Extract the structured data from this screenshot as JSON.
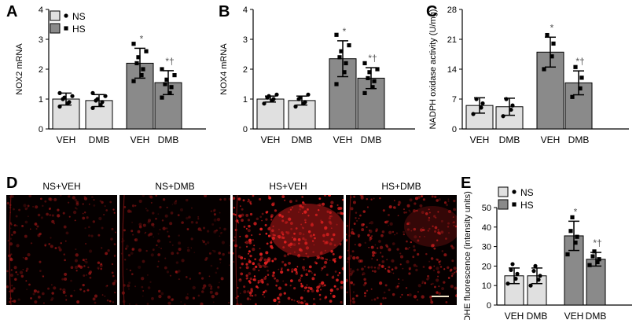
{
  "panels": {
    "A": "A",
    "B": "B",
    "C": "C",
    "D": "D",
    "E": "E"
  },
  "legend": {
    "ns": "NS",
    "hs": "HS",
    "ns_color": "#e0e0e0",
    "hs_color": "#8a8a8a"
  },
  "images": {
    "titles": [
      "NS+VEH",
      "NS+DMB",
      "HS+VEH",
      "HS+DMB"
    ],
    "stain_color": "#e02020"
  },
  "chart_data": [
    {
      "id": "A",
      "type": "bar",
      "ylabel": "NOX2 mRNA",
      "xlabel": "",
      "categories": [
        "VEH",
        "DMB",
        "VEH",
        "DMB"
      ],
      "groups": [
        "NS",
        "NS",
        "HS",
        "HS"
      ],
      "values": [
        1.0,
        0.95,
        2.2,
        1.55
      ],
      "errors": [
        0.2,
        0.2,
        0.5,
        0.4
      ],
      "points": [
        [
          0.75,
          0.85,
          0.9,
          1.0,
          1.05,
          1.1,
          1.2
        ],
        [
          0.7,
          0.8,
          0.9,
          0.95,
          1.0,
          1.1,
          1.2
        ],
        [
          1.6,
          1.8,
          2.0,
          2.2,
          2.4,
          2.6,
          2.85
        ],
        [
          1.05,
          1.2,
          1.4,
          1.5,
          1.65,
          1.8,
          2.0
        ]
      ],
      "annotations": [
        "",
        "",
        "*",
        "*†"
      ],
      "ylim": [
        0,
        4
      ],
      "yticks": [
        "0",
        "1",
        "2",
        "3",
        "4"
      ]
    },
    {
      "id": "B",
      "type": "bar",
      "ylabel": "NOX4 mRNA",
      "xlabel": "",
      "categories": [
        "VEH",
        "DMB",
        "VEH",
        "DMB"
      ],
      "groups": [
        "NS",
        "NS",
        "HS",
        "HS"
      ],
      "values": [
        1.0,
        0.95,
        2.35,
        1.7
      ],
      "errors": [
        0.1,
        0.15,
        0.6,
        0.35
      ],
      "points": [
        [
          0.85,
          0.95,
          1.0,
          1.05,
          1.1,
          1.15
        ],
        [
          0.75,
          0.85,
          0.9,
          1.0,
          1.05,
          1.15
        ],
        [
          1.5,
          1.9,
          2.2,
          2.4,
          2.6,
          2.8,
          3.15
        ],
        [
          1.2,
          1.4,
          1.6,
          1.7,
          1.9,
          2.0,
          2.2
        ]
      ],
      "annotations": [
        "",
        "",
        "*",
        "*†"
      ],
      "ylim": [
        0,
        4
      ],
      "yticks": [
        "0",
        "1",
        "2",
        "3",
        "4"
      ]
    },
    {
      "id": "C",
      "type": "bar",
      "ylabel": "NADPH oxidase activity (U/mg)",
      "xlabel": "",
      "categories": [
        "VEH",
        "DMB",
        "VEH",
        "DMB"
      ],
      "groups": [
        "NS",
        "NS",
        "HS",
        "HS"
      ],
      "values": [
        5.5,
        5.2,
        18.0,
        10.8
      ],
      "errors": [
        1.8,
        2.0,
        3.5,
        2.8
      ],
      "points": [
        [
          3.5,
          5.0,
          6.0,
          7.0
        ],
        [
          3.0,
          4.5,
          5.5,
          7.0
        ],
        [
          14.0,
          17.0,
          20.0,
          22.0
        ],
        [
          7.5,
          9.5,
          12.0,
          14.5
        ]
      ],
      "annotations": [
        "",
        "",
        "*",
        "*†"
      ],
      "ylim": [
        0,
        28
      ],
      "yticks": [
        "0",
        "7",
        "14",
        "21",
        "28"
      ]
    },
    {
      "id": "E",
      "type": "bar",
      "ylabel": "DHE fluorescence (intensity units)",
      "xlabel": "",
      "categories": [
        "VEH",
        "DMB",
        "VEH",
        "DMB"
      ],
      "groups": [
        "NS",
        "NS",
        "HS",
        "HS"
      ],
      "values": [
        15.0,
        15.0,
        35.5,
        23.5
      ],
      "errors": [
        4.0,
        4.0,
        7.5,
        3.5
      ],
      "points": [
        [
          11.0,
          13.5,
          16.0,
          18.0,
          21.0
        ],
        [
          10.0,
          13.0,
          15.0,
          17.5,
          20.0
        ],
        [
          26.0,
          32.0,
          35.0,
          38.0,
          45.0
        ],
        [
          20.5,
          22.0,
          23.5,
          25.0,
          27.5
        ]
      ],
      "annotations": [
        "",
        "",
        "*",
        "*†"
      ],
      "ylim": [
        0,
        50
      ],
      "yticks": [
        "0",
        "10",
        "20",
        "30",
        "40",
        "50"
      ]
    }
  ]
}
